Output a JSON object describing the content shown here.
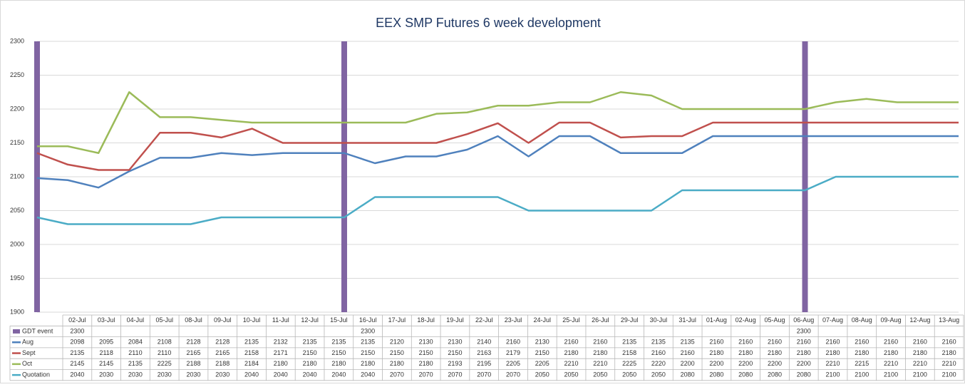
{
  "chart_data": {
    "type": "line",
    "title": "EEX SMP Futures 6 week development",
    "categories": [
      "02-Jul",
      "03-Jul",
      "04-Jul",
      "05-Jul",
      "08-Jul",
      "09-Jul",
      "10-Jul",
      "11-Jul",
      "12-Jul",
      "15-Jul",
      "16-Jul",
      "17-Jul",
      "18-Jul",
      "19-Jul",
      "22-Jul",
      "23-Jul",
      "24-Jul",
      "25-Jul",
      "26-Jul",
      "29-Jul",
      "30-Jul",
      "31-Jul",
      "01-Aug",
      "02-Aug",
      "05-Aug",
      "06-Aug",
      "07-Aug",
      "08-Aug",
      "09-Aug",
      "12-Aug",
      "13-Aug"
    ],
    "series": [
      {
        "name": "GDT event",
        "type": "bar",
        "color": "#8064a2",
        "values": [
          2300,
          null,
          null,
          null,
          null,
          null,
          null,
          null,
          null,
          null,
          2300,
          null,
          null,
          null,
          null,
          null,
          null,
          null,
          null,
          null,
          null,
          null,
          null,
          null,
          null,
          2300,
          null,
          null,
          null,
          null,
          null
        ]
      },
      {
        "name": "Aug",
        "color": "#4f81bd",
        "values": [
          2098,
          2095,
          2084,
          2108,
          2128,
          2128,
          2135,
          2132,
          2135,
          2135,
          2135,
          2120,
          2130,
          2130,
          2140,
          2160,
          2130,
          2160,
          2160,
          2135,
          2135,
          2135,
          2160,
          2160,
          2160,
          2160,
          2160,
          2160,
          2160,
          2160,
          2160
        ]
      },
      {
        "name": "Sept",
        "color": "#c0504d",
        "values": [
          2135,
          2118,
          2110,
          2110,
          2165,
          2165,
          2158,
          2171,
          2150,
          2150,
          2150,
          2150,
          2150,
          2150,
          2163,
          2179,
          2150,
          2180,
          2180,
          2158,
          2160,
          2160,
          2180,
          2180,
          2180,
          2180,
          2180,
          2180,
          2180,
          2180,
          2180
        ]
      },
      {
        "name": "Oct",
        "color": "#9bbb59",
        "values": [
          2145,
          2145,
          2135,
          2225,
          2188,
          2188,
          2184,
          2180,
          2180,
          2180,
          2180,
          2180,
          2180,
          2193,
          2195,
          2205,
          2205,
          2210,
          2210,
          2225,
          2220,
          2200,
          2200,
          2200,
          2200,
          2200,
          2210,
          2215,
          2210,
          2210,
          2210
        ]
      },
      {
        "name": "Quotation",
        "color": "#4bacc6",
        "values": [
          2040,
          2030,
          2030,
          2030,
          2030,
          2030,
          2040,
          2040,
          2040,
          2040,
          2040,
          2070,
          2070,
          2070,
          2070,
          2070,
          2050,
          2050,
          2050,
          2050,
          2050,
          2080,
          2080,
          2080,
          2080,
          2080,
          2100,
          2100,
          2100,
          2100,
          2100
        ]
      }
    ],
    "ylim": [
      1900,
      2300
    ],
    "yticks": [
      1900,
      1950,
      2000,
      2050,
      2100,
      2150,
      2200,
      2250,
      2300
    ],
    "grid": true
  }
}
